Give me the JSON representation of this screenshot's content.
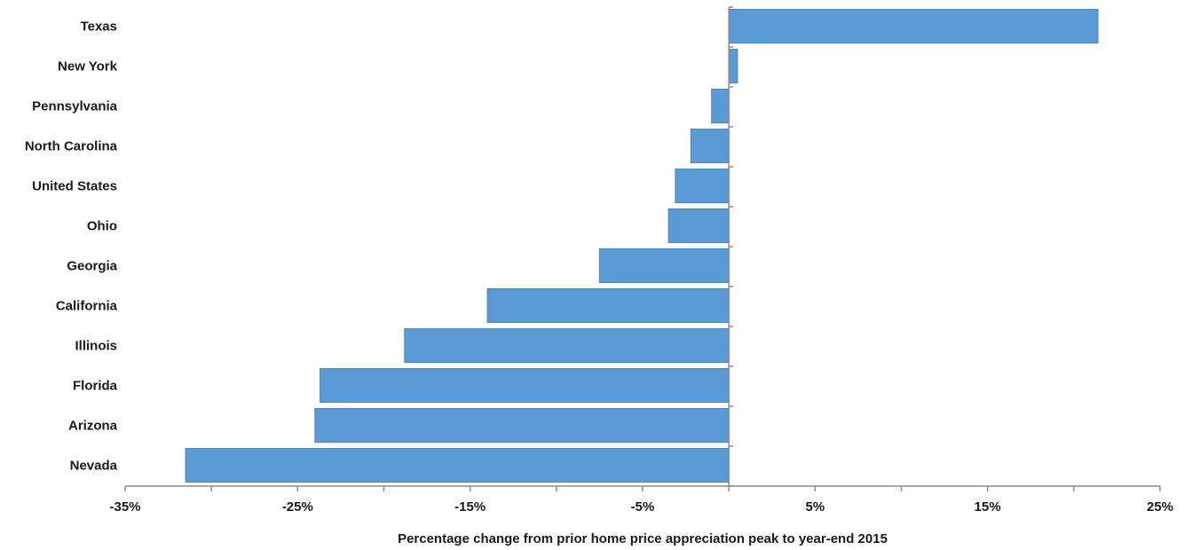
{
  "chart_data": {
    "type": "bar",
    "orientation": "horizontal",
    "categories": [
      "Texas",
      "New York",
      "Pennsylvania",
      "North Carolina",
      "United States",
      "Ohio",
      "Georgia",
      "California",
      "Illinois",
      "Florida",
      "Arizona",
      "Nevada"
    ],
    "values": [
      21.4,
      0.5,
      -1.0,
      -2.2,
      -3.1,
      -3.5,
      -7.5,
      -14.0,
      -18.8,
      -23.7,
      -24.0,
      -31.5
    ],
    "title": "",
    "xlabel": "Percentage change from prior home price appreciation peak to year-end 2015",
    "ylabel": "",
    "xlim": [
      -35,
      25
    ],
    "x_ticks": [
      -35,
      -25,
      -15,
      -5,
      5,
      15,
      25
    ],
    "x_tick_labels": [
      "-35%",
      "-25%",
      "-15%",
      "-5%",
      "5%",
      "15%",
      "25%"
    ],
    "bar_color": "#5b9bd5",
    "grid": false,
    "legend": "none"
  }
}
